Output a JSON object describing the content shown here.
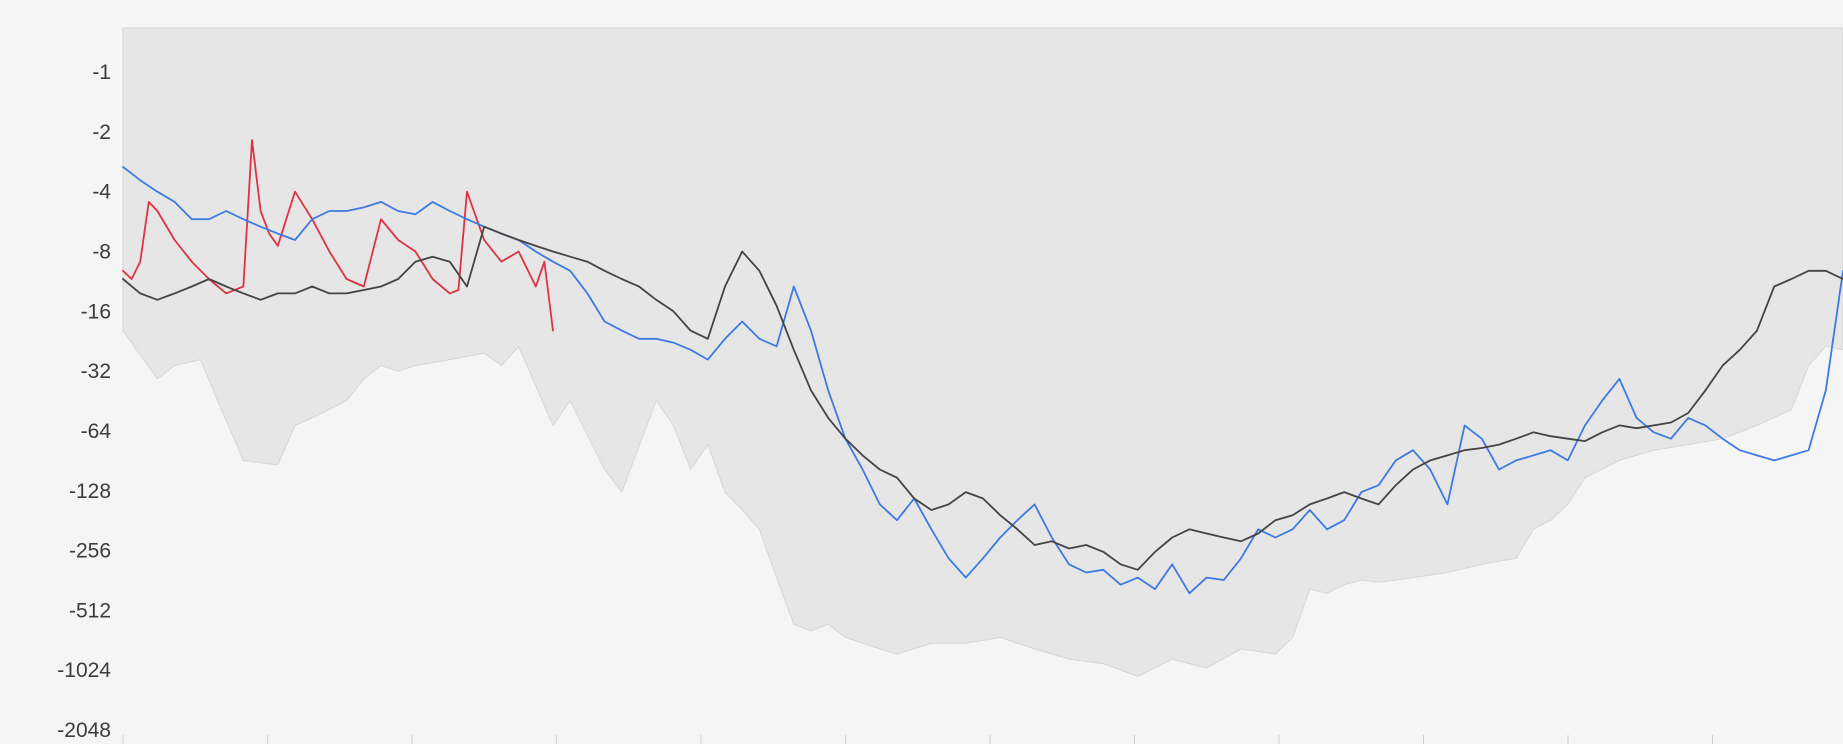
{
  "chart_data": {
    "type": "line",
    "title": "",
    "xlabel": "",
    "ylabel": "",
    "y_scale": "log2-negative",
    "y_ticks": [
      -1,
      -2,
      -4,
      -8,
      -16,
      -32,
      -64,
      -128,
      -256,
      -512,
      -1024,
      -2048
    ],
    "y_tick_labels": [
      "-1",
      "-2",
      "-4",
      "-8",
      "-16",
      "-32",
      "-64",
      "-128",
      "-256",
      "-512",
      "-1024",
      "-2048"
    ],
    "xlim": [
      0,
      100
    ],
    "ylim": [
      -0.6,
      -2048
    ],
    "grid": false,
    "legend": "none",
    "colors": {
      "background": "#f5f5f5",
      "band": "#e6e6e6",
      "band_edge": "#d6d6d6",
      "red": "#dd3344",
      "blue": "#3d7be0",
      "dark": "#444444",
      "tick_text": "#3c3c3c"
    },
    "band": {
      "x": [
        0,
        2,
        3,
        4.5,
        5.5,
        7,
        9,
        10,
        11,
        13,
        14,
        15,
        16,
        17,
        19,
        21,
        22,
        23,
        24,
        25,
        26,
        28,
        29,
        31,
        32,
        33,
        34,
        35,
        36,
        37,
        38,
        39,
        40,
        41,
        42,
        44,
        45,
        47,
        49,
        51,
        53,
        55,
        57,
        59,
        61,
        63,
        65,
        67,
        68,
        69,
        70,
        71,
        72,
        73,
        74,
        75,
        77,
        79,
        81,
        82,
        83,
        84,
        85,
        87,
        89,
        91,
        93,
        95,
        97,
        98,
        99,
        100
      ],
      "upper": [
        -0.6,
        -0.6,
        -0.6,
        -0.6,
        -0.6,
        -0.6,
        -0.6,
        -0.6,
        -0.6,
        -0.6,
        -0.6,
        -0.6,
        -0.6,
        -0.6,
        -0.6,
        -0.6,
        -0.6,
        -0.6,
        -0.6,
        -0.6,
        -0.6,
        -0.6,
        -0.6,
        -0.6,
        -0.6,
        -0.6,
        -0.6,
        -0.6,
        -0.6,
        -0.6,
        -0.6,
        -0.6,
        -0.6,
        -0.6,
        -0.6,
        -0.6,
        -0.6,
        -0.6,
        -0.6,
        -0.6,
        -0.6,
        -0.6,
        -0.6,
        -0.6,
        -0.6,
        -0.6,
        -0.6,
        -0.6,
        -0.6,
        -0.6,
        -0.6,
        -0.6,
        -0.6,
        -0.6,
        -0.6,
        -0.6,
        -0.6,
        -0.6,
        -0.6,
        -0.6,
        -0.6,
        -0.6,
        -0.6,
        -0.6,
        -0.6,
        -0.6,
        -0.6,
        -0.6,
        -0.6,
        -0.6,
        -0.6,
        -0.6
      ],
      "lower": [
        -20,
        -35,
        -30,
        -28,
        -45,
        -90,
        -95,
        -60,
        -55,
        -45,
        -35,
        -30,
        -32,
        -30,
        -28,
        -26,
        -30,
        -24,
        -38,
        -60,
        -45,
        -100,
        -130,
        -45,
        -60,
        -100,
        -75,
        -130,
        -160,
        -200,
        -350,
        -600,
        -650,
        -600,
        -700,
        -800,
        -850,
        -750,
        -750,
        -700,
        -800,
        -900,
        -950,
        -1100,
        -900,
        -1000,
        -800,
        -850,
        -700,
        -400,
        -420,
        -380,
        -360,
        -370,
        -360,
        -350,
        -330,
        -300,
        -280,
        -200,
        -180,
        -150,
        -110,
        -90,
        -80,
        -75,
        -70,
        -60,
        -50,
        -30,
        -24,
        -25
      ]
    },
    "series": [
      {
        "color_key": "red",
        "x": [
          0,
          0.5,
          1,
          1.5,
          2,
          3,
          4,
          5,
          6,
          7,
          7.5,
          8,
          8.5,
          9,
          10,
          11,
          12,
          13,
          14,
          15,
          16,
          17,
          18,
          19,
          19.5,
          20,
          21,
          22,
          23,
          24,
          24.5,
          25
        ],
        "values": [
          -10,
          -11,
          -9,
          -4.5,
          -5,
          -7,
          -9,
          -11,
          -13,
          -12,
          -2.2,
          -5,
          -6.5,
          -7.5,
          -4,
          -5.5,
          -8,
          -11,
          -12,
          -5.5,
          -7,
          -8,
          -11,
          -13,
          -12.5,
          -4,
          -7,
          -9,
          -8,
          -12,
          -9,
          -20
        ]
      },
      {
        "color_key": "blue",
        "x": [
          0,
          1,
          2,
          3,
          4,
          5,
          6,
          7,
          8,
          9,
          10,
          11,
          12,
          13,
          14,
          15,
          16,
          17,
          18,
          19,
          20,
          21,
          22,
          23,
          24,
          25,
          26,
          27,
          28,
          29,
          30,
          31,
          32,
          33,
          34,
          35,
          36,
          37,
          38,
          39,
          40,
          41,
          42,
          43,
          44,
          45,
          46,
          47,
          48,
          49,
          50,
          51,
          52,
          53,
          54,
          55,
          56,
          57,
          58,
          59,
          60,
          61,
          62,
          63,
          64,
          65,
          66,
          67,
          68,
          69,
          70,
          71,
          72,
          73,
          74,
          75,
          76,
          77,
          78,
          79,
          80,
          81,
          82,
          83,
          84,
          85,
          86,
          87,
          88,
          89,
          90,
          91,
          92,
          93,
          94,
          95,
          96,
          97,
          98,
          99,
          100
        ],
        "values": [
          -3,
          -3.5,
          -4,
          -4.5,
          -5.5,
          -5.5,
          -5,
          -5.5,
          -6,
          -6.5,
          -7,
          -5.5,
          -5,
          -5,
          -4.8,
          -4.5,
          -5,
          -5.2,
          -4.5,
          -5,
          -5.5,
          -6,
          -6.5,
          -7,
          -8,
          -9,
          -10,
          -13,
          -18,
          -20,
          -22,
          -22,
          -23,
          -25,
          -28,
          -22,
          -18,
          -22,
          -24,
          -12,
          -20,
          -40,
          -70,
          -100,
          -150,
          -180,
          -140,
          -200,
          -280,
          -350,
          -280,
          -220,
          -180,
          -150,
          -220,
          -300,
          -330,
          -320,
          -380,
          -350,
          -400,
          -300,
          -420,
          -350,
          -360,
          -280,
          -200,
          -220,
          -200,
          -160,
          -200,
          -180,
          -130,
          -120,
          -90,
          -80,
          -100,
          -150,
          -60,
          -70,
          -100,
          -90,
          -85,
          -80,
          -90,
          -60,
          -45,
          -35,
          -55,
          -65,
          -70,
          -55,
          -60,
          -70,
          -80,
          -85,
          -90,
          -85,
          -80,
          -40,
          -10
        ],
        "x_scale": "even"
      },
      {
        "color_key": "dark",
        "x": [
          0,
          1,
          2,
          3,
          4,
          5,
          6,
          7,
          8,
          9,
          10,
          11,
          12,
          13,
          14,
          15,
          16,
          17,
          18,
          19,
          20,
          21,
          22,
          23,
          24,
          25,
          26,
          27,
          28,
          29,
          30,
          31,
          32,
          33,
          34,
          35,
          36,
          37,
          38,
          39,
          40,
          41,
          42,
          43,
          44,
          45,
          46,
          47,
          48,
          49,
          50,
          51,
          52,
          53,
          54,
          55,
          56,
          57,
          58,
          59,
          60,
          61,
          62,
          63,
          64,
          65,
          66,
          67,
          68,
          69,
          70,
          71,
          72,
          73,
          74,
          75,
          76,
          77,
          78,
          79,
          80,
          81,
          82,
          83,
          84,
          85,
          86,
          87,
          88,
          89,
          90,
          91,
          92,
          93,
          94,
          95,
          96,
          97,
          98,
          99,
          100
        ],
        "values": [
          -11,
          -13,
          -14,
          -13,
          -12,
          -11,
          -12,
          -13,
          -14,
          -13,
          -13,
          -12,
          -13,
          -13,
          -12.5,
          -12,
          -11,
          -9,
          -8.5,
          -9,
          -12,
          -6,
          -6.5,
          -7,
          -7.5,
          -8,
          -8.5,
          -9,
          -10,
          -11,
          -12,
          -14,
          -16,
          -20,
          -22,
          -12,
          -8,
          -10,
          -15,
          -25,
          -40,
          -55,
          -70,
          -85,
          -100,
          -110,
          -140,
          -160,
          -150,
          -130,
          -140,
          -170,
          -200,
          -240,
          -230,
          -250,
          -240,
          -260,
          -300,
          -320,
          -260,
          -220,
          -200,
          -210,
          -220,
          -230,
          -210,
          -180,
          -170,
          -150,
          -140,
          -130,
          -140,
          -150,
          -120,
          -100,
          -90,
          -85,
          -80,
          -78,
          -75,
          -70,
          -65,
          -68,
          -70,
          -72,
          -65,
          -60,
          -62,
          -60,
          -58,
          -52,
          -40,
          -30,
          -25,
          -20,
          -12,
          -11,
          -10,
          -10,
          -11
        ],
        "x_scale": "even"
      }
    ]
  }
}
